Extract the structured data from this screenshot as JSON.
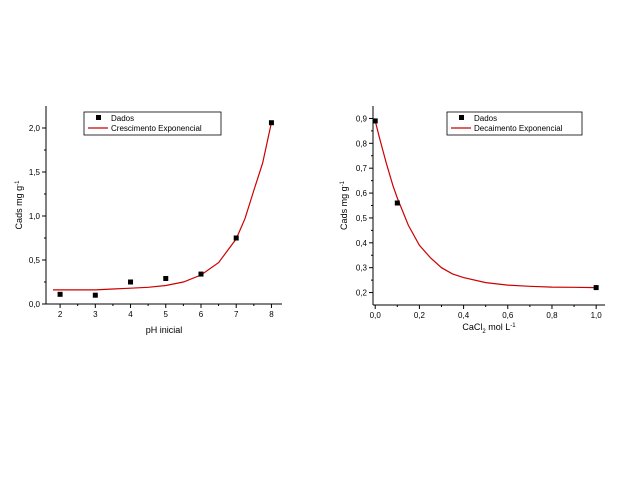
{
  "chart_data": [
    {
      "type": "scatter",
      "xlabel": "pH inicial",
      "ylabel": "Cads mg g",
      "ylabel_sup": "-1",
      "xlim": [
        1.6,
        8.3
      ],
      "ylim": [
        0,
        2.25
      ],
      "xticks": [
        "2",
        "3",
        "4",
        "5",
        "6",
        "7",
        "8"
      ],
      "yticks": [
        "0,0",
        "0,5",
        "1,0",
        "1,5",
        "2,0"
      ],
      "legend": {
        "position": "top",
        "entries": [
          "Dados",
          "Crescimento Exponencial"
        ]
      },
      "series": [
        {
          "name": "Dados",
          "kind": "points",
          "color": "#000000",
          "x": [
            2,
            3,
            4,
            5,
            6,
            7,
            8
          ],
          "y": [
            0.11,
            0.1,
            0.25,
            0.29,
            0.34,
            0.75,
            2.06
          ]
        },
        {
          "name": "Crescimento Exponencial",
          "kind": "line",
          "color": "#cc0000",
          "x": [
            1.8,
            2.5,
            3,
            3.5,
            4,
            4.5,
            5,
            5.5,
            6,
            6.5,
            7,
            7.25,
            7.5,
            7.75,
            8
          ],
          "y": [
            0.16,
            0.16,
            0.16,
            0.17,
            0.18,
            0.19,
            0.21,
            0.25,
            0.33,
            0.47,
            0.74,
            0.97,
            1.29,
            1.6,
            2.06
          ]
        }
      ]
    },
    {
      "type": "scatter",
      "xlabel": "CaCl",
      "xlabel_sub": "2",
      "xlabel_rest": " mol L",
      "xlabel_sup": "-1",
      "ylabel": "Cads mg g",
      "ylabel_sup": "-1",
      "xlim": [
        -0.01,
        1.04
      ],
      "ylim": [
        0.15,
        0.95
      ],
      "xticks": [
        "0,0",
        "0,2",
        "0,4",
        "0,6",
        "0,8",
        "1,0"
      ],
      "xtick_values": [
        0,
        0.2,
        0.4,
        0.6,
        0.8,
        1.0
      ],
      "yticks": [
        "0,2",
        "0,3",
        "0,4",
        "0,5",
        "0,6",
        "0,7",
        "0,8",
        "0,9"
      ],
      "ytick_values": [
        0.2,
        0.3,
        0.4,
        0.5,
        0.6,
        0.7,
        0.8,
        0.9
      ],
      "legend": {
        "position": "top-right",
        "entries": [
          "Dados",
          "Decaimento Exponencial"
        ]
      },
      "series": [
        {
          "name": "Dados",
          "kind": "points",
          "color": "#000000",
          "x": [
            0.0,
            0.1,
            1.0
          ],
          "y": [
            0.89,
            0.56,
            0.22
          ]
        },
        {
          "name": "Decaimento Exponencial",
          "kind": "line",
          "color": "#cc0000",
          "x": [
            0.0,
            0.02,
            0.05,
            0.08,
            0.1,
            0.15,
            0.2,
            0.25,
            0.3,
            0.35,
            0.4,
            0.5,
            0.6,
            0.7,
            0.8,
            0.9,
            1.0
          ],
          "y": [
            0.89,
            0.82,
            0.72,
            0.63,
            0.58,
            0.47,
            0.39,
            0.34,
            0.3,
            0.275,
            0.26,
            0.24,
            0.23,
            0.225,
            0.222,
            0.221,
            0.22
          ]
        }
      ]
    }
  ]
}
